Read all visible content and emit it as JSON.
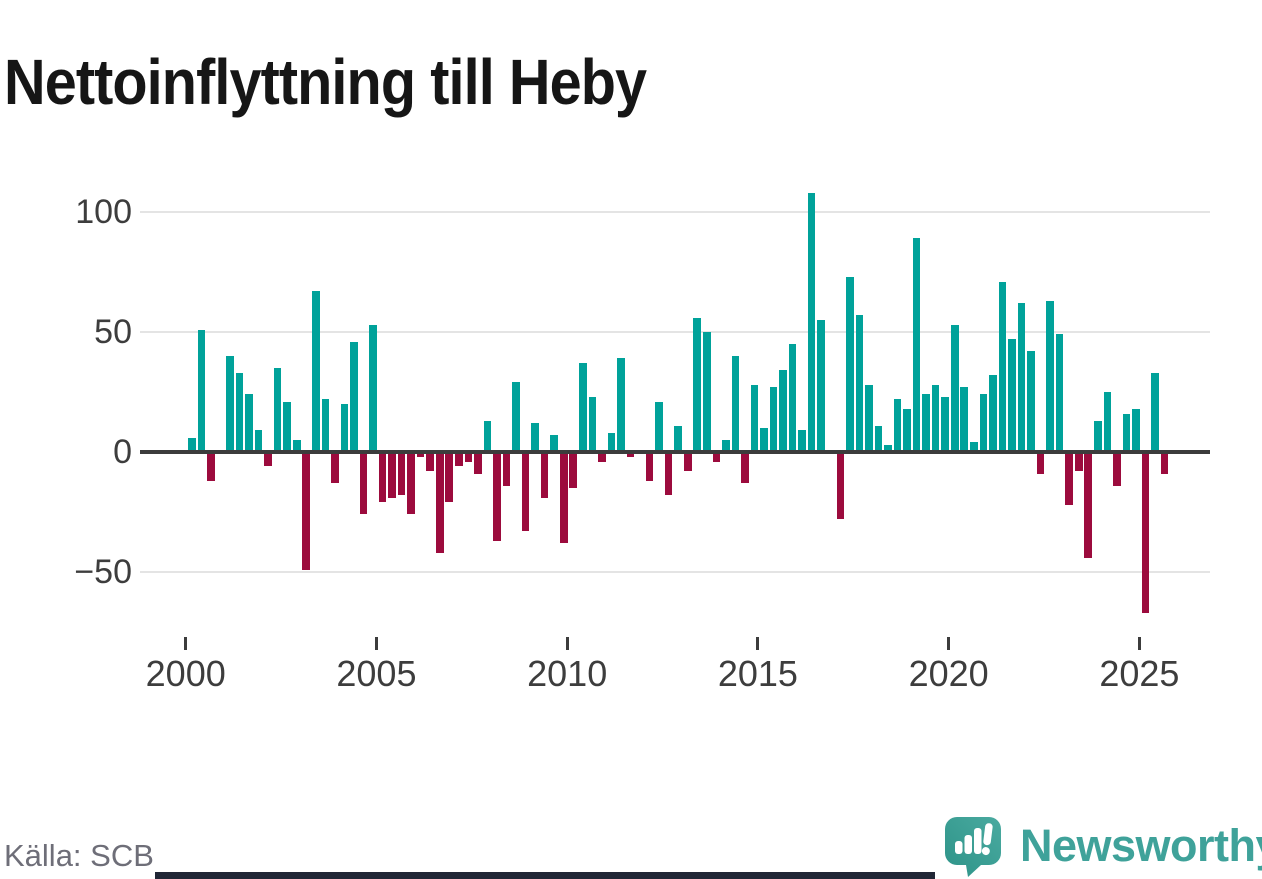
{
  "title": "Nettoinflyttning till Heby",
  "source": "Källa: SCB",
  "logo": {
    "wordmark": "Newsworthy"
  },
  "colors": {
    "positive_bar": "#00a29a",
    "negative_bar": "#9c0b3d",
    "gridline": "#e4e4e4",
    "zero_line": "#3c3c3c",
    "axis_text": "#3d3d3d",
    "title_text": "#161616",
    "source_text": "#6e6e78",
    "logo_teal": "#3fa29a",
    "bottom_strip": "#202635"
  },
  "chart_data": {
    "type": "bar",
    "title": "Nettoinflyttning till Heby",
    "xlabel": "",
    "ylabel": "",
    "grid": "horizontal",
    "legend": "none",
    "ylim": [
      -75,
      112
    ],
    "yticks": [
      {
        "label": "100",
        "value": 100
      },
      {
        "label": "50",
        "value": 50
      },
      {
        "label": "0",
        "value": 0
      },
      {
        "label": "−50",
        "value": -50
      }
    ],
    "xticks": [
      {
        "label": "2000",
        "year": 2000
      },
      {
        "label": "2005",
        "year": 2005
      },
      {
        "label": "2010",
        "year": 2010
      },
      {
        "label": "2015",
        "year": 2015
      },
      {
        "label": "2020",
        "year": 2020
      },
      {
        "label": "2025",
        "year": 2025
      }
    ],
    "x": [
      "2000Q1",
      "2000Q2",
      "2000Q3",
      "2000Q4",
      "2001Q1",
      "2001Q2",
      "2001Q3",
      "2001Q4",
      "2002Q1",
      "2002Q2",
      "2002Q3",
      "2002Q4",
      "2003Q1",
      "2003Q2",
      "2003Q3",
      "2003Q4",
      "2004Q1",
      "2004Q2",
      "2004Q3",
      "2004Q4",
      "2005Q1",
      "2005Q2",
      "2005Q3",
      "2005Q4",
      "2006Q1",
      "2006Q2",
      "2006Q3",
      "2006Q4",
      "2007Q1",
      "2007Q2",
      "2007Q3",
      "2007Q4",
      "2008Q1",
      "2008Q2",
      "2008Q3",
      "2008Q4",
      "2009Q1",
      "2009Q2",
      "2009Q3",
      "2009Q4",
      "2010Q1",
      "2010Q2",
      "2010Q3",
      "2010Q4",
      "2011Q1",
      "2011Q2",
      "2011Q3",
      "2011Q4",
      "2012Q1",
      "2012Q2",
      "2012Q3",
      "2012Q4",
      "2013Q1",
      "2013Q2",
      "2013Q3",
      "2013Q4",
      "2014Q1",
      "2014Q2",
      "2014Q3",
      "2014Q4",
      "2015Q1",
      "2015Q2",
      "2015Q3",
      "2015Q4",
      "2016Q1",
      "2016Q2",
      "2016Q3",
      "2016Q4",
      "2017Q1",
      "2017Q2",
      "2017Q3",
      "2017Q4",
      "2018Q1",
      "2018Q2",
      "2018Q3",
      "2018Q4",
      "2019Q1",
      "2019Q2",
      "2019Q3",
      "2019Q4",
      "2020Q1",
      "2020Q2",
      "2020Q3",
      "2020Q4",
      "2021Q1",
      "2021Q2",
      "2021Q3",
      "2021Q4",
      "2022Q1",
      "2022Q2",
      "2022Q3",
      "2022Q4",
      "2023Q1",
      "2023Q2",
      "2023Q3",
      "2023Q4",
      "2024Q1",
      "2024Q2",
      "2024Q3",
      "2024Q4",
      "2025Q1",
      "2025Q2",
      "2025Q3"
    ],
    "values": [
      6,
      51,
      -12,
      0,
      40,
      33,
      24,
      9,
      -6,
      35,
      21,
      5,
      -49,
      67,
      22,
      -13,
      20,
      46,
      -26,
      53,
      -21,
      -19,
      -18,
      -26,
      -2,
      -8,
      -42,
      -21,
      -6,
      -4,
      -9,
      13,
      -37,
      -14,
      29,
      -33,
      12,
      -19,
      7,
      -38,
      -15,
      37,
      23,
      -4,
      8,
      39,
      -2,
      0,
      -12,
      21,
      -18,
      11,
      -8,
      56,
      50,
      -4,
      5,
      40,
      -13,
      28,
      10,
      27,
      34,
      45,
      9,
      108,
      55,
      1,
      -28,
      73,
      57,
      28,
      11,
      3,
      22,
      18,
      89,
      24,
      28,
      23,
      53,
      27,
      4,
      24,
      32,
      71,
      47,
      62,
      42,
      -9,
      63,
      49,
      -22,
      -8,
      -44,
      13,
      25,
      -14,
      16,
      18,
      -67,
      33,
      -9
    ]
  }
}
